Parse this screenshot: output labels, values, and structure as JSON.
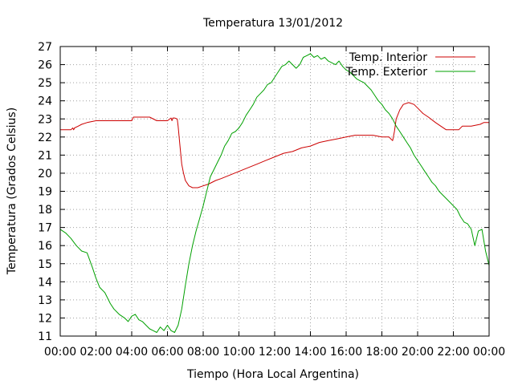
{
  "chart_data": {
    "type": "line",
    "title": "Temperatura 13/01/2012",
    "xlabel": "Tiempo (Hora Local Argentina)",
    "ylabel": "Temperatura (Grados Celsius)",
    "xlim": [
      0,
      24
    ],
    "ylim": [
      11,
      27
    ],
    "x_tick_labels": [
      "00:00",
      "02:00",
      "04:00",
      "06:00",
      "08:00",
      "10:00",
      "12:00",
      "14:00",
      "16:00",
      "18:00",
      "20:00",
      "22:00",
      "00:00"
    ],
    "y_tick_labels": [
      "11",
      "12",
      "13",
      "14",
      "15",
      "16",
      "17",
      "18",
      "19",
      "20",
      "21",
      "22",
      "23",
      "24",
      "25",
      "26",
      "27"
    ],
    "grid": true,
    "legend_position": "top-right",
    "colors": {
      "interior": "#cc0000",
      "exterior": "#00a000"
    },
    "series": [
      {
        "name": "Temp. Interior",
        "x": [
          0,
          0.6,
          0.7,
          0.75,
          0.8,
          1.0,
          1.2,
          1.5,
          2.0,
          3.0,
          4.0,
          4.1,
          5.0,
          5.4,
          6.0,
          6.2,
          6.25,
          6.3,
          6.4,
          6.55,
          6.6,
          6.7,
          6.8,
          6.9,
          7.0,
          7.2,
          7.4,
          7.7,
          8.0,
          8.3,
          8.7,
          9.0,
          9.5,
          10.0,
          10.5,
          11.0,
          11.5,
          12.0,
          12.5,
          13.0,
          13.5,
          14.0,
          14.5,
          15.0,
          15.5,
          16.0,
          16.5,
          17.0,
          17.5,
          18.0,
          18.4,
          18.5,
          18.6,
          18.7,
          18.8,
          19.0,
          19.2,
          19.5,
          19.8,
          20.0,
          20.3,
          20.6,
          21.0,
          21.3,
          21.6,
          22.0,
          22.3,
          22.5,
          23.0,
          23.5,
          23.7,
          24.0
        ],
        "values": [
          22.4,
          22.4,
          22.5,
          22.4,
          22.5,
          22.6,
          22.7,
          22.8,
          22.9,
          22.9,
          22.9,
          23.1,
          23.1,
          22.9,
          22.9,
          23.05,
          22.9,
          23.05,
          23.05,
          23.0,
          22.6,
          21.5,
          20.5,
          20.0,
          19.6,
          19.3,
          19.2,
          19.2,
          19.3,
          19.4,
          19.6,
          19.7,
          19.9,
          20.1,
          20.3,
          20.5,
          20.7,
          20.9,
          21.1,
          21.2,
          21.4,
          21.5,
          21.7,
          21.8,
          21.9,
          22.0,
          22.1,
          22.1,
          22.1,
          22.0,
          22.0,
          21.9,
          21.8,
          22.3,
          23.0,
          23.5,
          23.8,
          23.9,
          23.8,
          23.6,
          23.3,
          23.1,
          22.8,
          22.6,
          22.4,
          22.4,
          22.4,
          22.6,
          22.6,
          22.7,
          22.8,
          22.8
        ]
      },
      {
        "name": "Temp. Exterior",
        "x": [
          0,
          0.3,
          0.6,
          0.9,
          1.2,
          1.5,
          1.8,
          2.0,
          2.2,
          2.5,
          2.8,
          3.0,
          3.3,
          3.6,
          3.8,
          4.0,
          4.2,
          4.4,
          4.6,
          4.8,
          5.0,
          5.2,
          5.4,
          5.6,
          5.8,
          6.0,
          6.2,
          6.4,
          6.6,
          6.8,
          7.0,
          7.2,
          7.4,
          7.6,
          7.8,
          8.0,
          8.2,
          8.4,
          8.6,
          8.8,
          9.0,
          9.2,
          9.4,
          9.6,
          9.8,
          10.0,
          10.2,
          10.4,
          10.6,
          10.8,
          11.0,
          11.2,
          11.4,
          11.6,
          11.8,
          12.0,
          12.2,
          12.4,
          12.6,
          12.8,
          13.0,
          13.2,
          13.4,
          13.6,
          13.8,
          14.0,
          14.2,
          14.4,
          14.6,
          14.8,
          15.0,
          15.2,
          15.4,
          15.6,
          15.8,
          16.0,
          16.2,
          16.4,
          16.6,
          16.8,
          17.0,
          17.2,
          17.4,
          17.6,
          17.8,
          18.0,
          18.2,
          18.4,
          18.6,
          18.8,
          19.0,
          19.2,
          19.4,
          19.6,
          19.8,
          20.0,
          20.2,
          20.4,
          20.6,
          20.8,
          21.0,
          21.2,
          21.4,
          21.6,
          21.8,
          22.0,
          22.2,
          22.4,
          22.6,
          22.8,
          23.0,
          23.2,
          23.4,
          23.6,
          23.8,
          24.0
        ],
        "values": [
          16.9,
          16.7,
          16.4,
          16.0,
          15.7,
          15.6,
          14.8,
          14.2,
          13.7,
          13.4,
          12.8,
          12.5,
          12.2,
          12.0,
          11.8,
          12.1,
          12.2,
          11.9,
          11.8,
          11.6,
          11.4,
          11.3,
          11.2,
          11.5,
          11.3,
          11.6,
          11.3,
          11.2,
          11.6,
          12.5,
          13.8,
          15.0,
          16.0,
          16.8,
          17.5,
          18.2,
          19.0,
          19.8,
          20.2,
          20.6,
          21.0,
          21.5,
          21.8,
          22.2,
          22.3,
          22.5,
          22.8,
          23.2,
          23.5,
          23.8,
          24.2,
          24.4,
          24.6,
          24.9,
          25.0,
          25.3,
          25.6,
          25.9,
          26.0,
          26.2,
          26.0,
          25.8,
          26.0,
          26.4,
          26.5,
          26.6,
          26.4,
          26.5,
          26.3,
          26.4,
          26.2,
          26.1,
          26.0,
          26.2,
          25.9,
          25.7,
          25.6,
          25.4,
          25.2,
          25.1,
          25.0,
          24.8,
          24.6,
          24.3,
          24.0,
          23.8,
          23.5,
          23.3,
          23.0,
          22.6,
          22.3,
          22.0,
          21.7,
          21.4,
          21.0,
          20.7,
          20.4,
          20.1,
          19.8,
          19.5,
          19.3,
          19.0,
          18.8,
          18.6,
          18.4,
          18.2,
          18.0,
          17.6,
          17.3,
          17.2,
          16.9,
          16.0,
          16.8,
          16.9,
          15.7,
          14.9
        ]
      }
    ]
  }
}
